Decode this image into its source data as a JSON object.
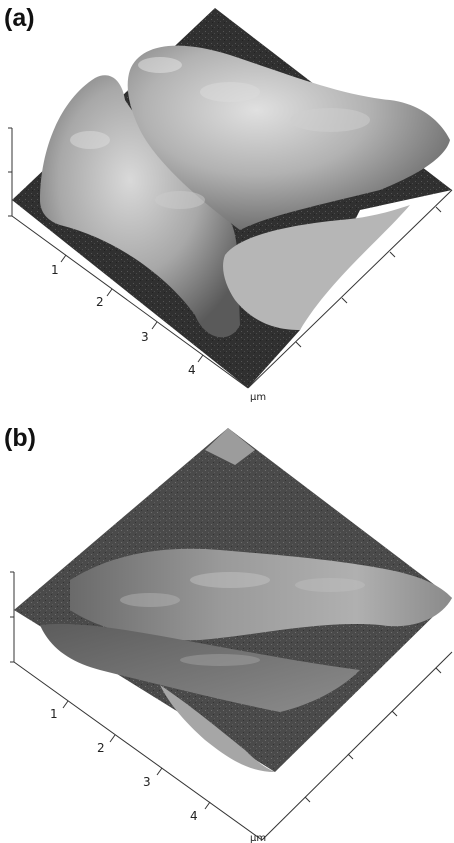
{
  "panels": [
    {
      "label": "(a)",
      "x_ticks": [
        "1",
        "2",
        "3",
        "4"
      ],
      "unit": "µm"
    },
    {
      "label": "(b)",
      "x_ticks": [
        "1",
        "2",
        "3",
        "4"
      ],
      "unit": "µm"
    }
  ]
}
